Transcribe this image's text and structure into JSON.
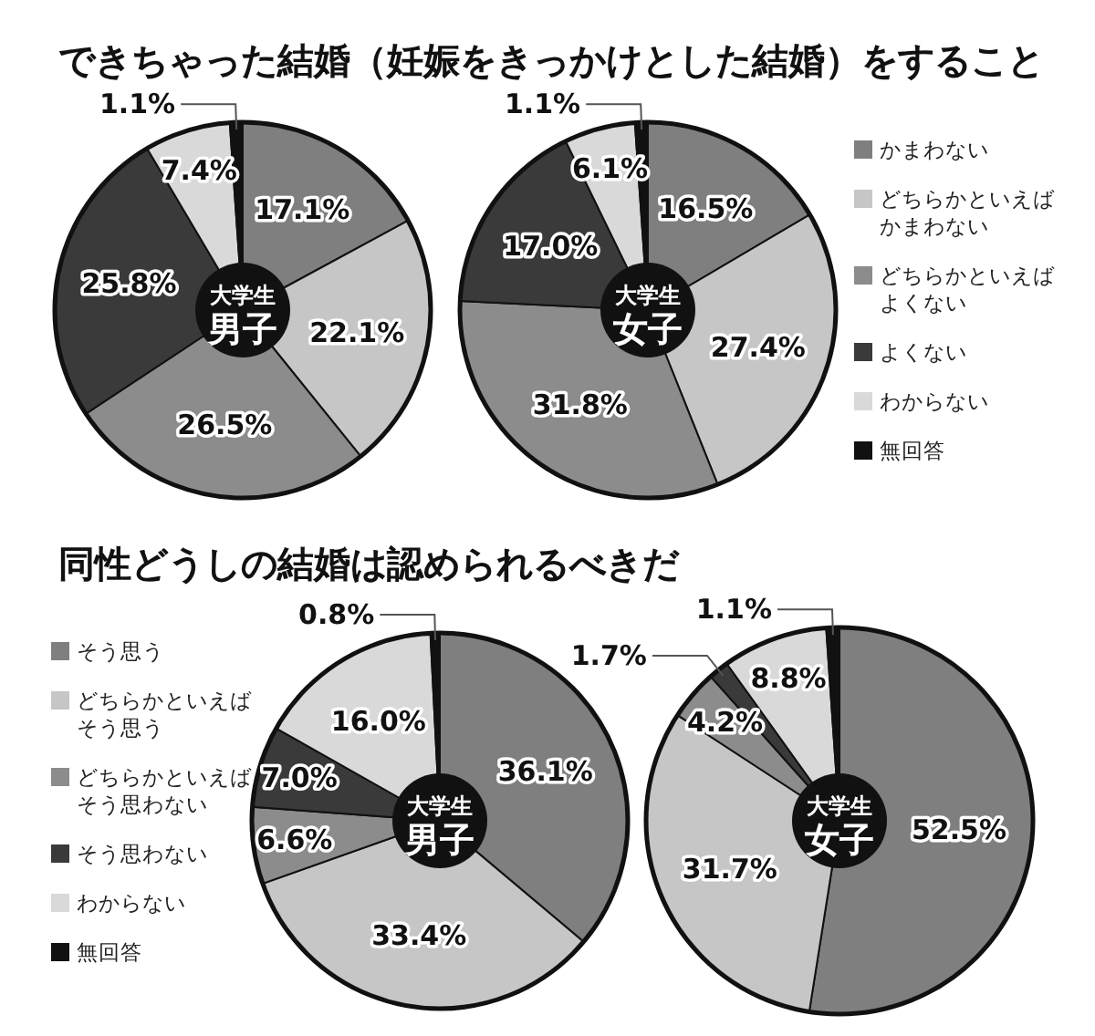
{
  "chart_data": [
    {
      "type": "donut",
      "title": "できちゃった結婚（妊娠をきっかけとした結婚）をすること",
      "annotations": [
        "大学生",
        "男子"
      ],
      "categories": [
        null,
        null,
        null,
        null,
        null,
        null
      ],
      "values": [
        17.1,
        22.1,
        26.5,
        25.8,
        7.4,
        1.1
      ],
      "value_labels": [
        "17.1%",
        "22.1%",
        "26.5%",
        "25.8%",
        "7.4%",
        "1.1%"
      ],
      "colors": [
        "#7f7f7f",
        "#c6c6c6",
        "#8c8c8c",
        "#3a3a3a",
        "#d9d9d9",
        "#111111"
      ]
    },
    {
      "type": "donut",
      "annotations": [
        "大学生",
        "女子"
      ],
      "categories": [
        "かまわない",
        "どちらかといえばかまわない",
        "どちらかといえばよくない",
        "よくない",
        "わからない",
        "無回答"
      ],
      "values": [
        16.5,
        27.4,
        31.8,
        17.0,
        6.1,
        1.1
      ],
      "value_labels": [
        "16.5%",
        "27.4%",
        "31.8%",
        "17.0%",
        "6.1%",
        "1.1%"
      ],
      "colors": [
        "#7f7f7f",
        "#c6c6c6",
        "#8c8c8c",
        "#3a3a3a",
        "#d9d9d9",
        "#111111"
      ],
      "legend": "right"
    },
    {
      "type": "donut",
      "title": "同性どうしの結婚は認められるべきだ",
      "annotations": [
        "大学生",
        "男子"
      ],
      "categories": [
        "そう思う",
        "どちらかといえばそう思う",
        "どちらかといえばそう思わない",
        "そう思わない",
        "わからない",
        "無回答"
      ],
      "values": [
        36.1,
        33.4,
        6.6,
        7.0,
        16.0,
        0.8
      ],
      "value_labels": [
        "36.1%",
        "33.4%",
        "6.6%",
        "7.0%",
        "16.0%",
        "0.8%"
      ],
      "colors": [
        "#7f7f7f",
        "#c6c6c6",
        "#8c8c8c",
        "#3a3a3a",
        "#d9d9d9",
        "#111111"
      ],
      "legend": "left"
    },
    {
      "type": "donut",
      "annotations": [
        "大学生",
        "女子"
      ],
      "categories": [
        null,
        null,
        null,
        null,
        null,
        null
      ],
      "values": [
        52.5,
        31.7,
        4.2,
        1.7,
        8.8,
        1.1
      ],
      "value_labels": [
        "52.5%",
        "31.7%",
        "4.2%",
        "1.7%",
        "8.8%",
        "1.1%"
      ],
      "colors": [
        "#7f7f7f",
        "#c6c6c6",
        "#8c8c8c",
        "#3a3a3a",
        "#d9d9d9",
        "#111111"
      ]
    }
  ]
}
